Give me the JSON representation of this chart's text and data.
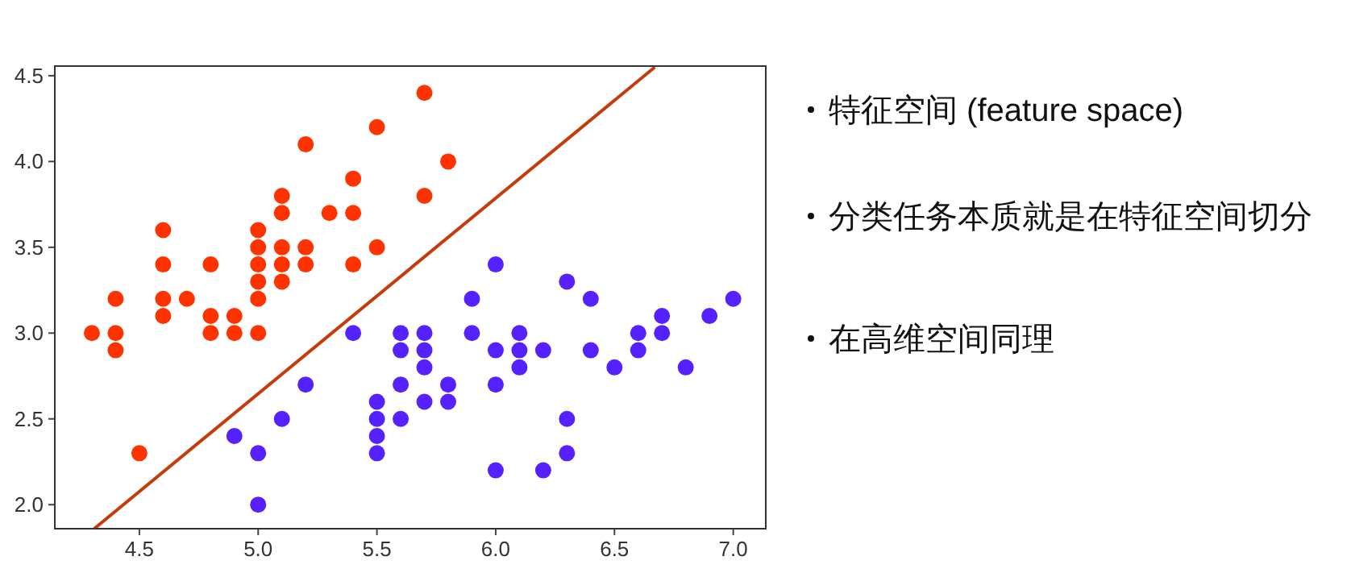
{
  "chart_data": {
    "type": "scatter",
    "marker": "circle",
    "grid": false,
    "xlim": [
      4.144,
      7.137
    ],
    "ylim": [
      1.86,
      4.556
    ],
    "xticks": [
      4.5,
      {
        "value": 5,
        "label": "5.0"
      },
      5.5,
      {
        "value": 6,
        "label": "6.0"
      },
      6.5,
      {
        "value": 7,
        "label": "7.0"
      }
    ],
    "yticks": [
      {
        "value": 2,
        "label": "2.0"
      },
      2.5,
      {
        "value": 3,
        "label": "3.0"
      },
      3.5,
      {
        "value": 4,
        "label": "4.0"
      },
      4.5
    ],
    "series": [
      {
        "color": "#ff3300",
        "x": [
          4.3,
          4.4,
          4.4,
          4.4,
          4.5,
          4.6,
          4.6,
          4.6,
          4.6,
          4.7,
          4.8,
          4.8,
          4.8,
          4.9,
          4.9,
          5.0,
          5.0,
          5.0,
          5.0,
          5.0,
          5.0,
          5.1,
          5.1,
          5.1,
          5.1,
          5.1,
          5.2,
          5.2,
          5.2,
          5.3,
          5.4,
          5.4,
          5.4,
          5.5,
          5.5,
          5.7,
          5.7,
          5.8
        ],
        "values": [
          3.0,
          3.2,
          3.0,
          2.9,
          2.3,
          3.6,
          3.4,
          3.2,
          3.1,
          3.2,
          3.4,
          3.1,
          3.0,
          3.1,
          3.0,
          3.6,
          3.5,
          3.4,
          3.3,
          3.2,
          3.0,
          3.8,
          3.7,
          3.5,
          3.4,
          3.3,
          4.1,
          3.5,
          3.4,
          3.7,
          3.9,
          3.7,
          3.4,
          4.2,
          3.5,
          4.4,
          3.8,
          4.0
        ]
      },
      {
        "color": "#5522ff",
        "x": [
          4.9,
          5.0,
          5.0,
          5.1,
          5.2,
          5.4,
          5.5,
          5.5,
          5.5,
          5.5,
          5.6,
          5.6,
          5.6,
          5.6,
          5.7,
          5.7,
          5.7,
          5.7,
          5.8,
          5.8,
          5.9,
          5.9,
          6.0,
          6.0,
          6.0,
          6.0,
          6.1,
          6.1,
          6.1,
          6.2,
          6.2,
          6.3,
          6.3,
          6.3,
          6.4,
          6.4,
          6.5,
          6.6,
          6.6,
          6.7,
          6.7,
          6.8,
          6.9,
          7.0
        ],
        "values": [
          2.4,
          2.3,
          2.0,
          2.5,
          2.7,
          3.0,
          2.6,
          2.5,
          2.4,
          2.3,
          3.0,
          2.9,
          2.7,
          2.5,
          3.0,
          2.9,
          2.8,
          2.6,
          2.7,
          2.6,
          3.2,
          3.0,
          3.4,
          2.9,
          2.7,
          2.2,
          3.0,
          2.9,
          2.8,
          2.9,
          2.2,
          3.3,
          2.5,
          2.3,
          3.2,
          2.9,
          2.8,
          3.0,
          2.9,
          3.1,
          3.0,
          2.8,
          3.1,
          3.2
        ]
      },
      {
        "type": "line",
        "color": "#c43c0c",
        "line_style": "solid",
        "marker": "none",
        "x": [
          4.31,
          6.67
        ],
        "values": [
          1.86,
          4.55
        ]
      }
    ],
    "annotations": [
      "特征空间 (feature space)",
      "分类任务本质就是在特征空间切分",
      "在高维空间同理"
    ]
  }
}
